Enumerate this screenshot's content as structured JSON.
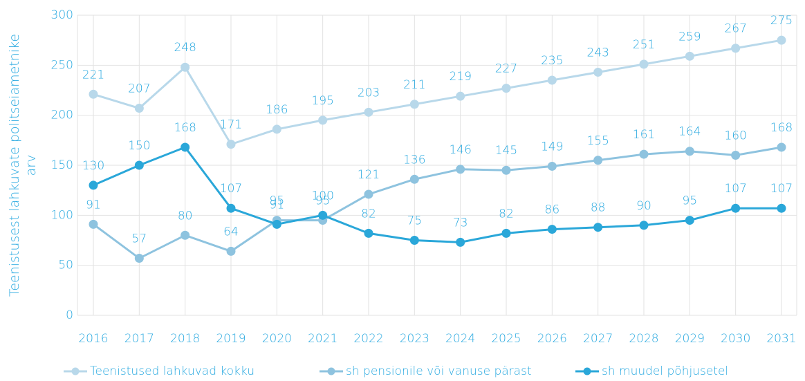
{
  "chart_data": {
    "type": "line",
    "y_label": [
      "Teenistusest lahkuvate politseiametnike",
      "arv"
    ],
    "categories": [
      "2016",
      "2017",
      "2018",
      "2019",
      "2020",
      "2021",
      "2022",
      "2023",
      "2024",
      "2025",
      "2026",
      "2027",
      "2028",
      "2029",
      "2030",
      "2031"
    ],
    "series": [
      {
        "name": "Teenistused lahkuvad kokku",
        "color": "#b8d8ea",
        "values": [
          221,
          207,
          248,
          171,
          186,
          195,
          203,
          211,
          219,
          227,
          235,
          243,
          251,
          259,
          267,
          275
        ]
      },
      {
        "name": "sh pensionile või vanuse pärast",
        "color": "#8ec3df",
        "values": [
          91,
          57,
          80,
          64,
          95,
          95,
          121,
          136,
          146,
          145,
          149,
          155,
          161,
          164,
          160,
          168
        ]
      },
      {
        "name": "sh muudel põhjusetel",
        "color": "#2aa7d9",
        "values": [
          130,
          150,
          168,
          107,
          91,
          100,
          82,
          75,
          73,
          82,
          86,
          88,
          90,
          95,
          107,
          107
        ]
      }
    ],
    "ylim": [
      0,
      300
    ],
    "yticks": [
      0,
      50,
      100,
      150,
      200,
      250,
      300
    ],
    "grid": true,
    "legend": "bottom"
  }
}
